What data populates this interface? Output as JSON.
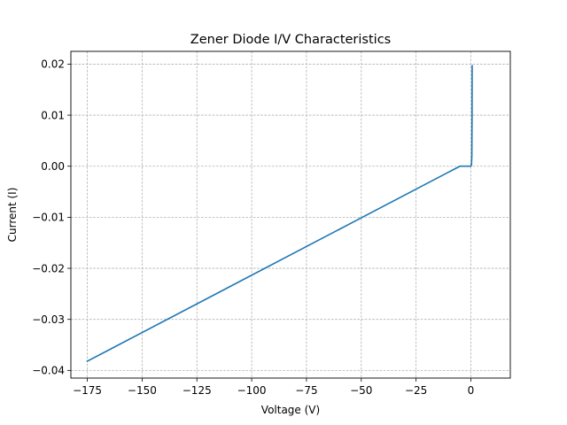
{
  "chart_data": {
    "type": "line",
    "title": "Zener Diode I/V Characteristics",
    "xlabel": "Voltage (V)",
    "ylabel": "Current (I)",
    "xlim": [
      -182.5,
      18
    ],
    "ylim": [
      -0.0415,
      0.0225
    ],
    "xticks": [
      -175,
      -150,
      -125,
      -100,
      -75,
      -50,
      -25,
      0
    ],
    "xtick_labels": [
      "−175",
      "−150",
      "−125",
      "−100",
      "−75",
      "−50",
      "−25",
      "0"
    ],
    "yticks": [
      -0.04,
      -0.03,
      -0.02,
      -0.01,
      0.0,
      0.01,
      0.02
    ],
    "ytick_labels": [
      "−0.04",
      "−0.03",
      "−0.02",
      "−0.01",
      "0.00",
      "0.01",
      "0.02"
    ],
    "grid": true,
    "color": "#1f77b4",
    "series": [
      {
        "x": [
          -175,
          -5,
          -5,
          0,
          0.3,
          0.45,
          0.55,
          0.6
        ],
        "y": [
          -0.0382,
          0.0,
          0.0,
          0.0,
          0.0003,
          0.002,
          0.01,
          0.0197
        ]
      }
    ]
  }
}
